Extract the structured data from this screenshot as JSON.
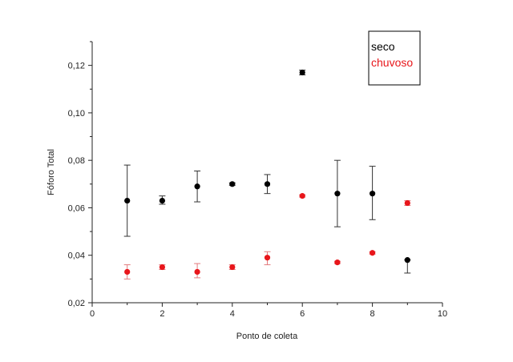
{
  "chart_data": {
    "type": "scatter",
    "title": "",
    "xlabel": "Ponto de coleta",
    "ylabel": "Fóforo Total",
    "xlim": [
      0,
      10
    ],
    "ylim": [
      0.02,
      0.13
    ],
    "x_ticks": [
      0,
      2,
      4,
      6,
      8,
      10
    ],
    "x_tick_labels": [
      "0",
      "2",
      "4",
      "6",
      "8",
      "10"
    ],
    "y_ticks": [
      0.02,
      0.04,
      0.06,
      0.08,
      0.1,
      0.12
    ],
    "y_tick_labels": [
      "0,02",
      "0,04",
      "0,06",
      "0,08",
      "0,10",
      "0,12"
    ],
    "grid": false,
    "legend_position": "top-right",
    "series": [
      {
        "name": "seco",
        "color": "#000000",
        "points": [
          {
            "x": 1,
            "y": 0.063,
            "err_low": 0.048,
            "err_high": 0.078
          },
          {
            "x": 2,
            "y": 0.063,
            "err_low": 0.0615,
            "err_high": 0.065
          },
          {
            "x": 3,
            "y": 0.069,
            "err_low": 0.0625,
            "err_high": 0.0755
          },
          {
            "x": 4,
            "y": 0.07,
            "err_low": 0.0695,
            "err_high": 0.0705
          },
          {
            "x": 5,
            "y": 0.07,
            "err_low": 0.066,
            "err_high": 0.074
          },
          {
            "x": 6,
            "y": 0.117,
            "err_low": 0.116,
            "err_high": 0.118
          },
          {
            "x": 7,
            "y": 0.066,
            "err_low": 0.052,
            "err_high": 0.08
          },
          {
            "x": 8,
            "y": 0.066,
            "err_low": 0.055,
            "err_high": 0.0775
          },
          {
            "x": 9,
            "y": 0.038,
            "err_low": 0.0325,
            "err_high": 0.038
          }
        ]
      },
      {
        "name": "chuvoso",
        "color": "#e8161b",
        "points": [
          {
            "x": 1,
            "y": 0.033,
            "err_low": 0.03,
            "err_high": 0.036
          },
          {
            "x": 2,
            "y": 0.035,
            "err_low": 0.034,
            "err_high": 0.036
          },
          {
            "x": 3,
            "y": 0.033,
            "err_low": 0.0305,
            "err_high": 0.0365
          },
          {
            "x": 4,
            "y": 0.035,
            "err_low": 0.034,
            "err_high": 0.036
          },
          {
            "x": 5,
            "y": 0.039,
            "err_low": 0.036,
            "err_high": 0.0415
          },
          {
            "x": 6,
            "y": 0.065,
            "err_low": 0.0645,
            "err_high": 0.0655
          },
          {
            "x": 7,
            "y": 0.037,
            "err_low": 0.0365,
            "err_high": 0.0375
          },
          {
            "x": 8,
            "y": 0.041,
            "err_low": 0.0405,
            "err_high": 0.0415
          },
          {
            "x": 9,
            "y": 0.062,
            "err_low": 0.061,
            "err_high": 0.063
          }
        ]
      }
    ]
  }
}
